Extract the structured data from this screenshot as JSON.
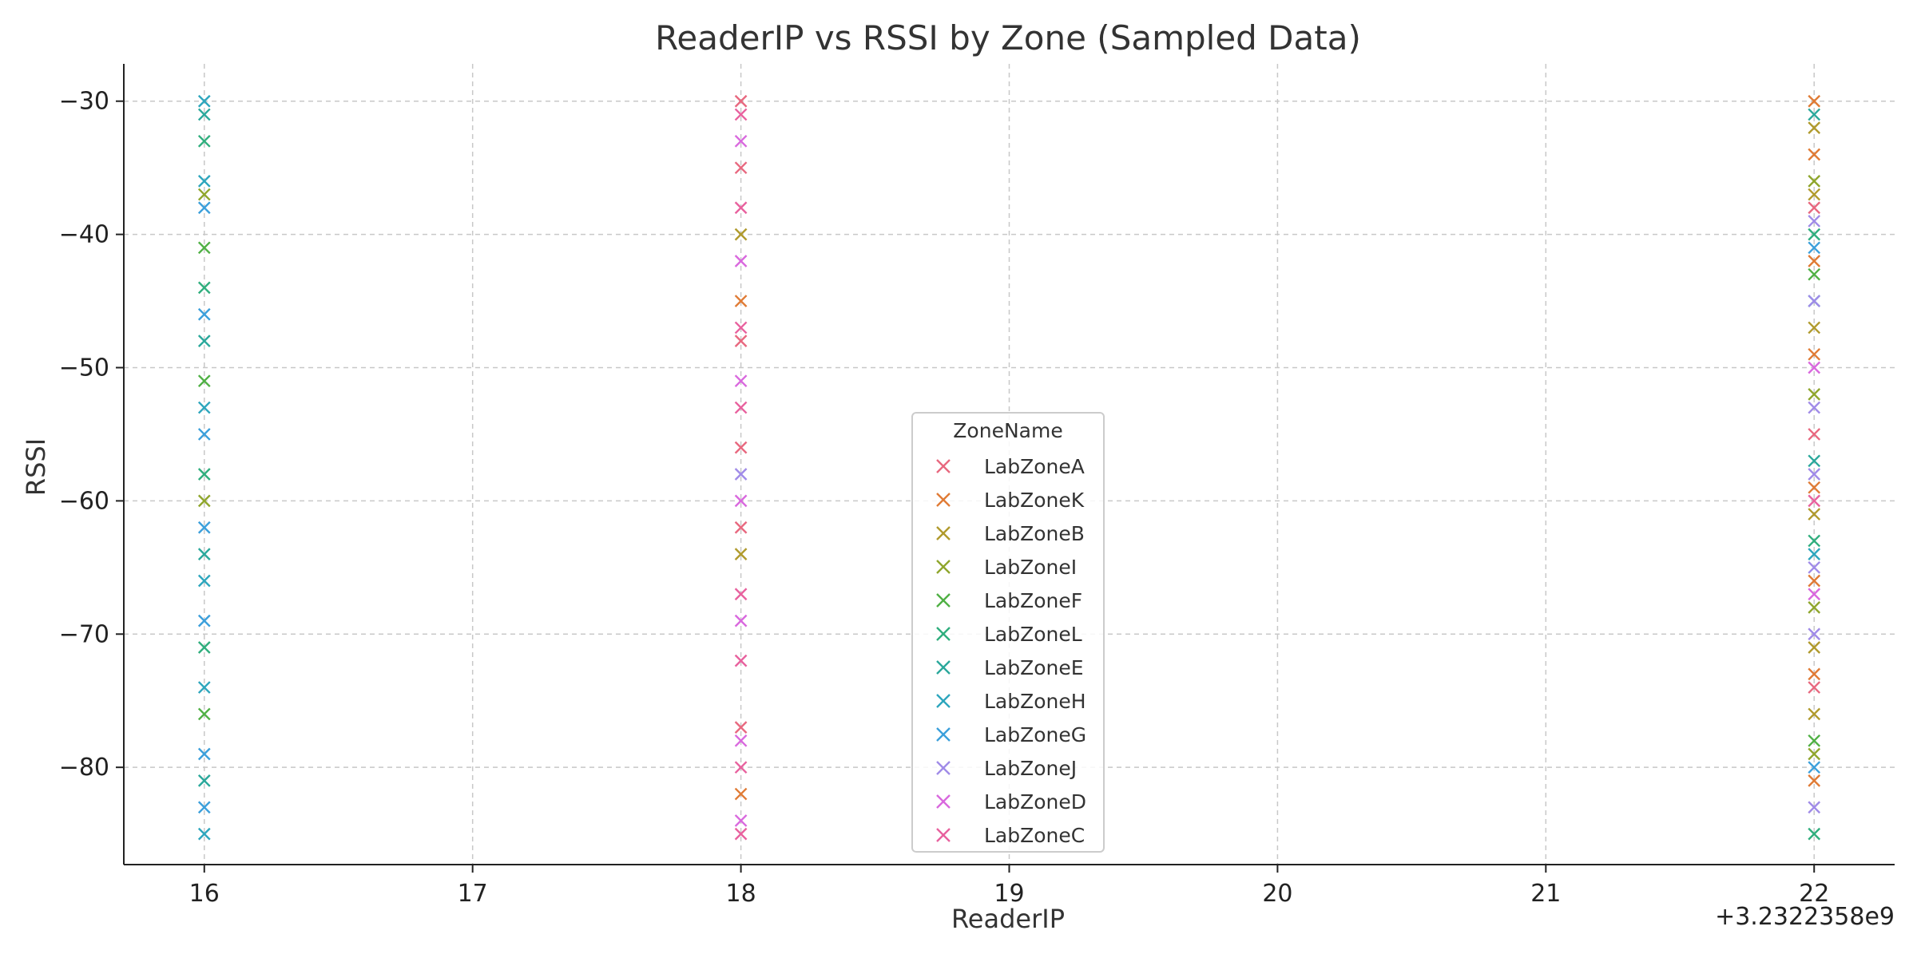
{
  "chart_data": {
    "type": "scatter",
    "title": "ReaderIP vs RSSI by Zone (Sampled Data)",
    "xlabel": "ReaderIP",
    "ylabel": "RSSI",
    "x_offset_label": "+3.2322358e9",
    "xlim": [
      15.7,
      22.3
    ],
    "ylim": [
      -87.3,
      -27.2
    ],
    "xticks": [
      16,
      17,
      18,
      19,
      20,
      21,
      22
    ],
    "yticks": [
      -30,
      -40,
      -50,
      -60,
      -70,
      -80
    ],
    "grid": true,
    "marker": "x",
    "legend": {
      "title": "ZoneName",
      "placement": "center-bottom"
    },
    "series": [
      {
        "name": "LabZoneA",
        "color": "#e8687f",
        "x": [
          18,
          18,
          18,
          18,
          18,
          18,
          22,
          22,
          22
        ],
        "y": [
          -30,
          -35,
          -48,
          -56,
          -62,
          -77,
          -38,
          -55,
          -74
        ]
      },
      {
        "name": "LabZoneK",
        "color": "#e07b35",
        "x": [
          18,
          18,
          22,
          22,
          22,
          22,
          22,
          22,
          22,
          22
        ],
        "y": [
          -45,
          -82,
          -30,
          -34,
          -42,
          -49,
          -59,
          -66,
          -73,
          -81
        ]
      },
      {
        "name": "LabZoneB",
        "color": "#b09a2c",
        "x": [
          18,
          18,
          22,
          22,
          22,
          22,
          22,
          22
        ],
        "y": [
          -40,
          -64,
          -32,
          -37,
          -47,
          -61,
          -71,
          -76
        ]
      },
      {
        "name": "LabZoneI",
        "color": "#8fa62c",
        "x": [
          16,
          16,
          22,
          22,
          22,
          22
        ],
        "y": [
          -37,
          -60,
          -36,
          -52,
          -68,
          -79
        ]
      },
      {
        "name": "LabZoneF",
        "color": "#4fb044",
        "x": [
          16,
          16,
          16,
          22,
          22
        ],
        "y": [
          -41,
          -51,
          -76,
          -43,
          -78
        ]
      },
      {
        "name": "LabZoneL",
        "color": "#2fae7d",
        "x": [
          16,
          16,
          16,
          16,
          22,
          22,
          22
        ],
        "y": [
          -33,
          -44,
          -58,
          -71,
          -40,
          -63,
          -85
        ]
      },
      {
        "name": "LabZoneE",
        "color": "#2aa89b",
        "x": [
          16,
          16,
          16,
          16,
          22,
          22
        ],
        "y": [
          -31,
          -48,
          -64,
          -81,
          -31,
          -57
        ]
      },
      {
        "name": "LabZoneH",
        "color": "#2da6bd",
        "x": [
          16,
          16,
          16,
          16,
          16,
          16,
          22,
          22
        ],
        "y": [
          -30,
          -36,
          -53,
          -66,
          -74,
          -85,
          -45,
          -64
        ]
      },
      {
        "name": "LabZoneG",
        "color": "#3b9fdb",
        "x": [
          16,
          16,
          16,
          16,
          16,
          16,
          16,
          22,
          22
        ],
        "y": [
          -38,
          -46,
          -55,
          -62,
          -69,
          -79,
          -83,
          -41,
          -80
        ]
      },
      {
        "name": "LabZoneJ",
        "color": "#a08be8",
        "x": [
          18,
          22,
          22,
          22,
          22,
          22,
          22,
          22
        ],
        "y": [
          -58,
          -39,
          -45,
          -53,
          -58,
          -65,
          -70,
          -83
        ]
      },
      {
        "name": "LabZoneD",
        "color": "#d968de",
        "x": [
          18,
          18,
          18,
          18,
          18,
          18,
          18,
          22,
          22
        ],
        "y": [
          -33,
          -42,
          -51,
          -60,
          -69,
          -78,
          -84,
          -50,
          -67
        ]
      },
      {
        "name": "LabZoneC",
        "color": "#e8619e",
        "x": [
          18,
          18,
          18,
          18,
          18,
          18,
          18,
          18,
          22
        ],
        "y": [
          -31,
          -38,
          -47,
          -53,
          -67,
          -72,
          -80,
          -85,
          -60
        ]
      }
    ]
  }
}
